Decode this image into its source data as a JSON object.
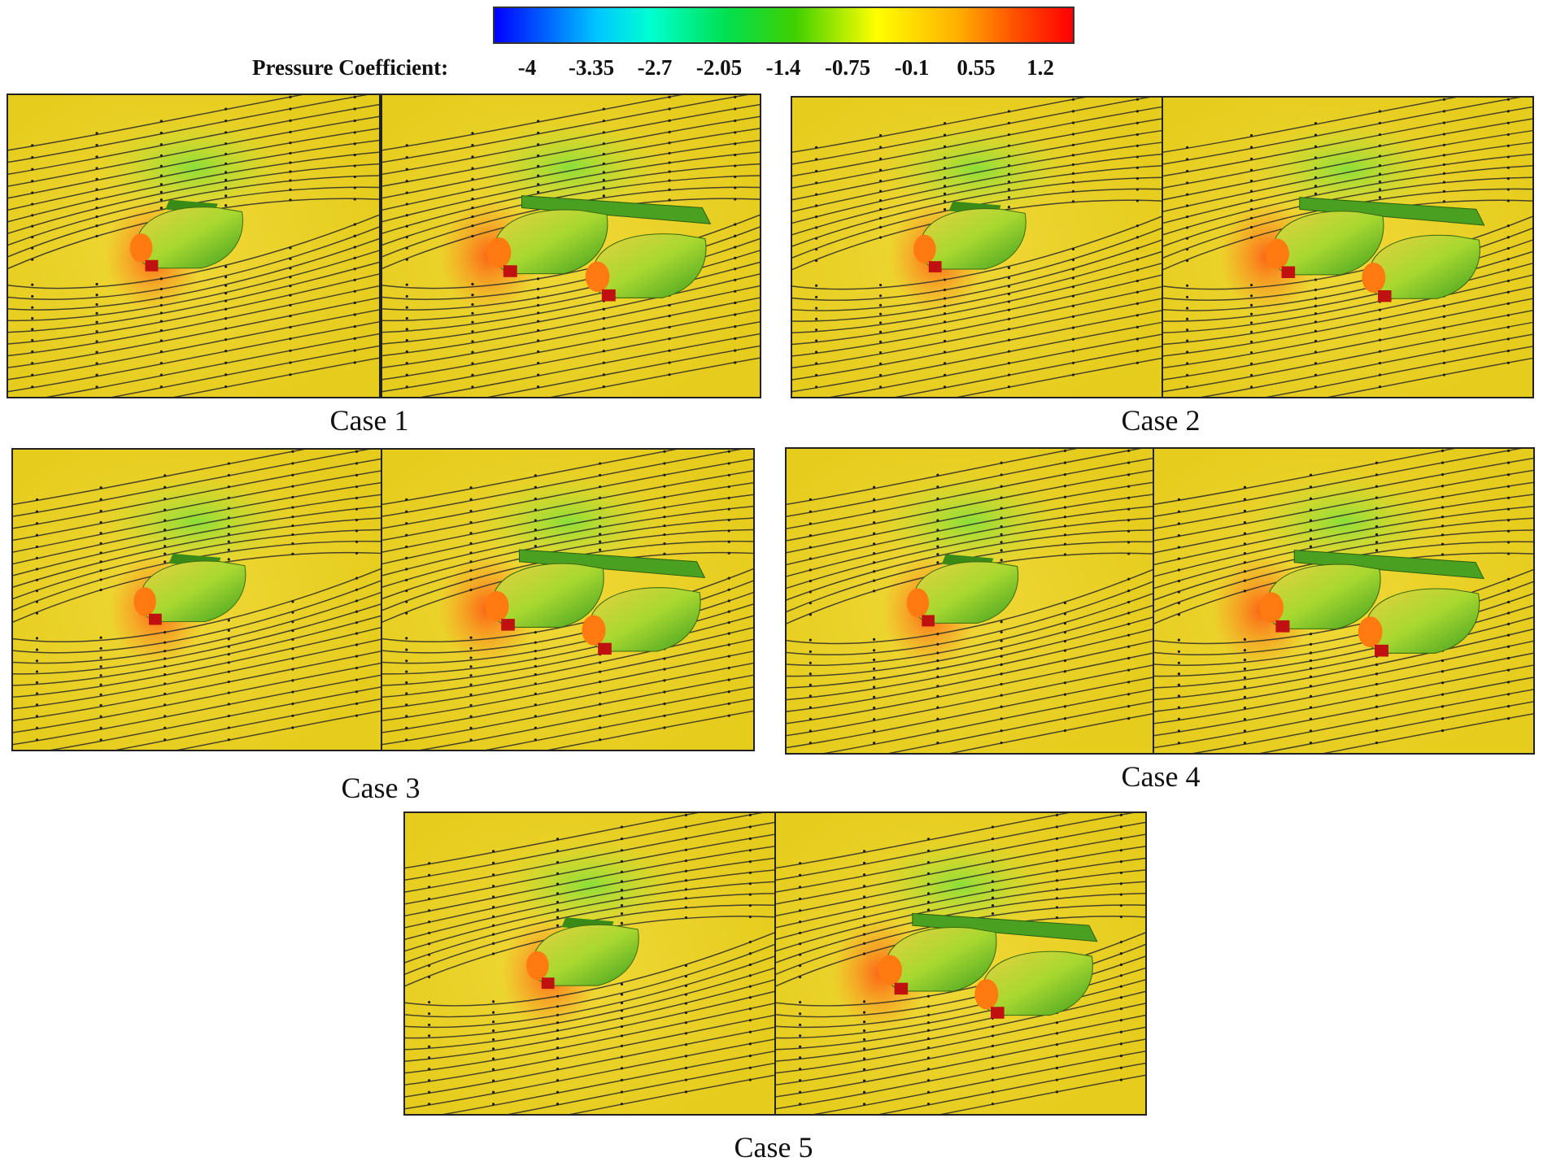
{
  "colorbar": {
    "label": "Pressure Coefficient:",
    "ticks": [
      "-4",
      "-3.35",
      "-2.7",
      "-2.05",
      "-1.4",
      "-0.75",
      "-0.1",
      "0.55",
      "1.2"
    ],
    "range": [
      -4,
      1.2
    ]
  },
  "cases": [
    {
      "caption": "Case 1"
    },
    {
      "caption": "Case 2"
    },
    {
      "caption": "Case 3"
    },
    {
      "caption": "Case 4"
    },
    {
      "caption": "Case 5"
    }
  ]
}
